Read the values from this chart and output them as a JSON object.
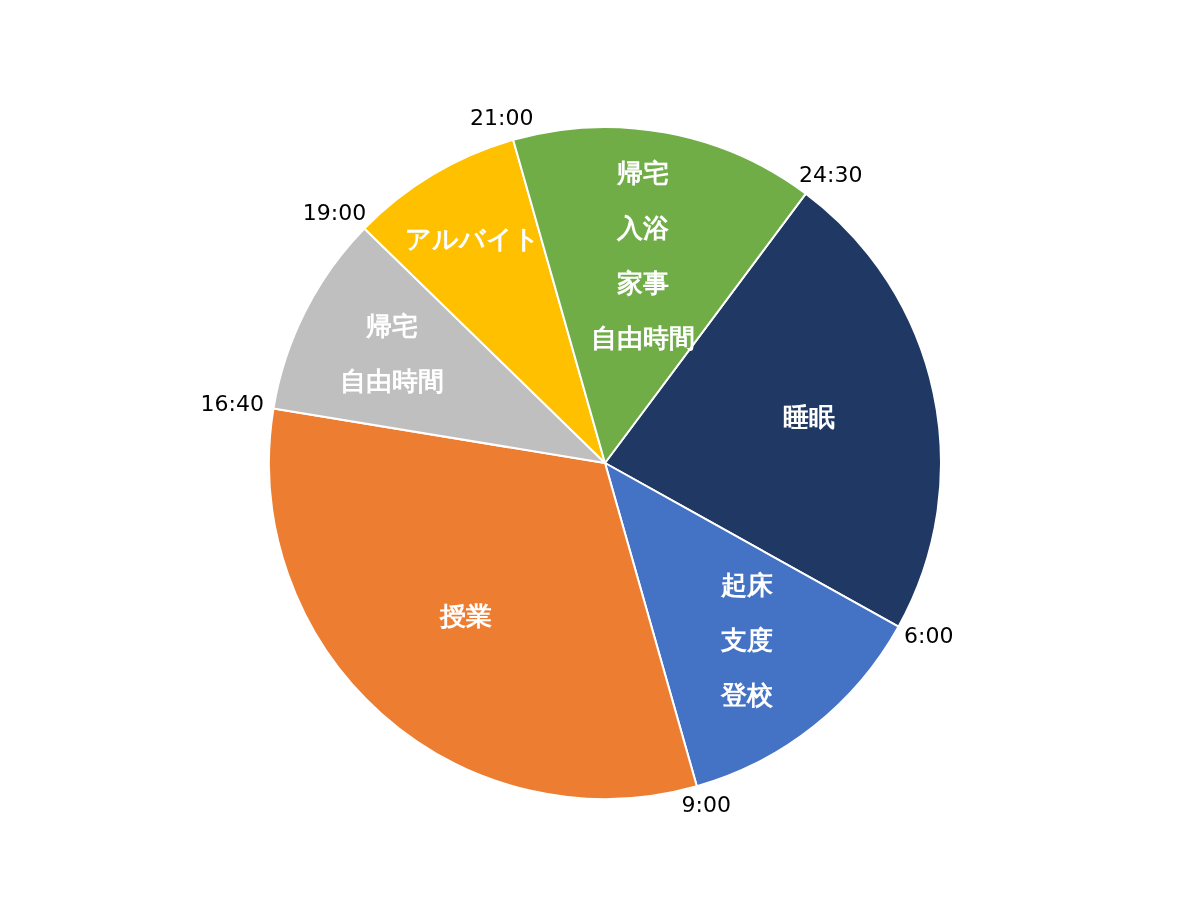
{
  "chart_data": {
    "type": "pie",
    "categories": [
      "睡眠",
      "起床支度登校",
      "授業",
      "帰宅自由時間",
      "アルバイト",
      "帰宅入浴家事自由時間"
    ],
    "values": [
      22.9,
      12.5,
      32.0,
      9.7,
      8.3,
      14.6
    ],
    "colors": [
      "#203864",
      "#4472c4",
      "#ed7d31",
      "#bfbfbf",
      "#ffc000",
      "#70ad47"
    ],
    "annotations": [
      "24:30",
      "6:00",
      "9:00",
      "16:40",
      "19:00",
      "21:00"
    ]
  }
}
